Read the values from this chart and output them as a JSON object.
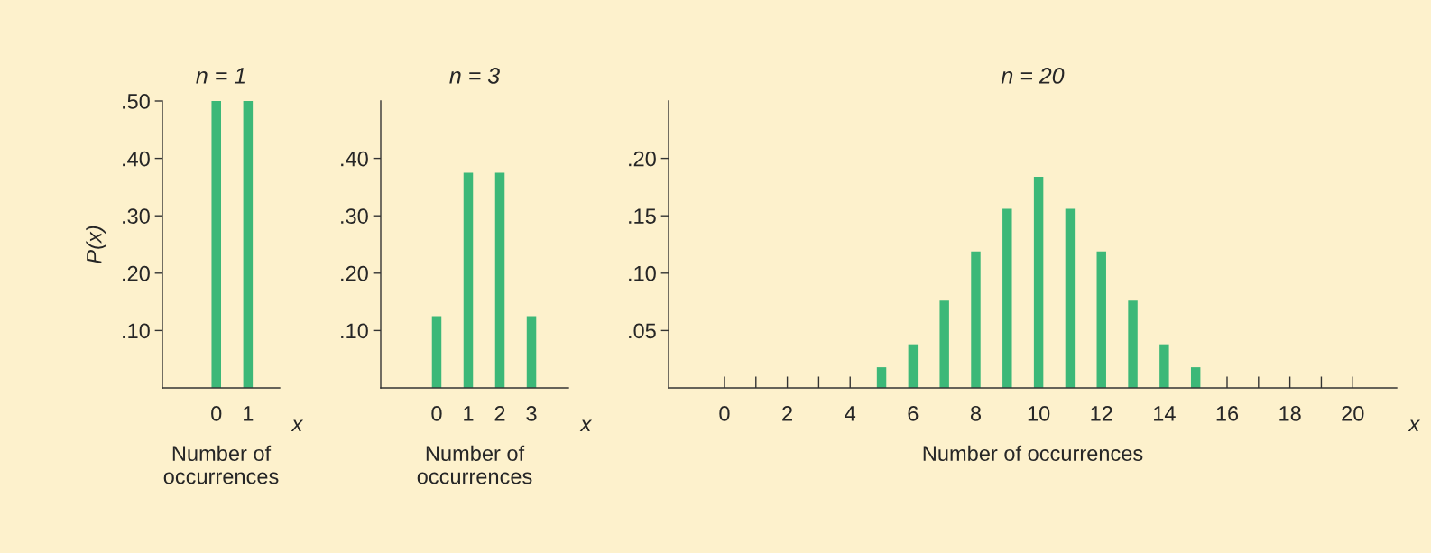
{
  "chart_data": [
    {
      "type": "bar",
      "title": "n = 1",
      "xlabel": "Number of\noccurrences",
      "ylabel": "P(x)",
      "x": [
        0,
        1
      ],
      "values": [
        0.5,
        0.5
      ],
      "color": "#3cb878",
      "xlim": [
        -1.7,
        2
      ],
      "xticks": [
        0,
        1
      ],
      "ylim": [
        0,
        0.5
      ],
      "yticks": [
        {
          "value": 0.1,
          "label": ".10"
        },
        {
          "value": 0.2,
          "label": ".20"
        },
        {
          "value": 0.3,
          "label": ".30"
        },
        {
          "value": 0.4,
          "label": ".40"
        },
        {
          "value": 0.5,
          "label": ".50"
        }
      ],
      "annotations": [
        "x"
      ],
      "grid": false,
      "legend": false
    },
    {
      "type": "bar",
      "title": "n = 3",
      "xlabel": "Number of\noccurrences",
      "x": [
        0,
        1,
        2,
        3
      ],
      "values": [
        0.125,
        0.375,
        0.375,
        0.125
      ],
      "color": "#3cb878",
      "xlim": [
        -1.77,
        4.17
      ],
      "xticks": [
        0,
        1,
        2,
        3
      ],
      "ylim": [
        0,
        0.5
      ],
      "yticks": [
        {
          "value": 0.1,
          "label": ".10"
        },
        {
          "value": 0.2,
          "label": ".20"
        },
        {
          "value": 0.3,
          "label": ".30"
        },
        {
          "value": 0.4,
          "label": ".40"
        }
      ],
      "annotations": [
        "x"
      ],
      "grid": false,
      "legend": false
    },
    {
      "type": "bar",
      "title": "n = 20",
      "xlabel": "Number of occurrences",
      "x": [
        0,
        1,
        2,
        3,
        4,
        5,
        6,
        7,
        8,
        9,
        10,
        11,
        12,
        13,
        14,
        15,
        16,
        17,
        18,
        19,
        20
      ],
      "values": [
        0,
        0,
        0,
        0,
        0,
        0.018,
        0.038,
        0.076,
        0.119,
        0.156,
        0.184,
        0.156,
        0.119,
        0.076,
        0.038,
        0.018,
        0,
        0,
        0,
        0,
        0
      ],
      "color": "#3cb878",
      "xlim": [
        -1.78,
        21.4
      ],
      "xticks": [
        0,
        {
          "value": 1,
          "label": null
        },
        2,
        {
          "value": 3,
          "label": null
        },
        4,
        {
          "value": 5,
          "label": null
        },
        6,
        {
          "value": 7,
          "label": null
        },
        8,
        {
          "value": 9,
          "label": null
        },
        10,
        {
          "value": 11,
          "label": null
        },
        12,
        {
          "value": 13,
          "label": null
        },
        14,
        {
          "value": 15,
          "label": null
        },
        16,
        {
          "value": 17,
          "label": null
        },
        18,
        {
          "value": 19,
          "label": null
        },
        20
      ],
      "ylim": [
        0,
        0.25
      ],
      "yticks": [
        {
          "value": 0.05,
          "label": ".05"
        },
        {
          "value": 0.1,
          "label": ".10"
        },
        {
          "value": 0.15,
          "label": ".15"
        },
        {
          "value": 0.2,
          "label": ".20"
        }
      ],
      "annotations": [
        "x"
      ],
      "grid": false,
      "legend": false
    }
  ]
}
